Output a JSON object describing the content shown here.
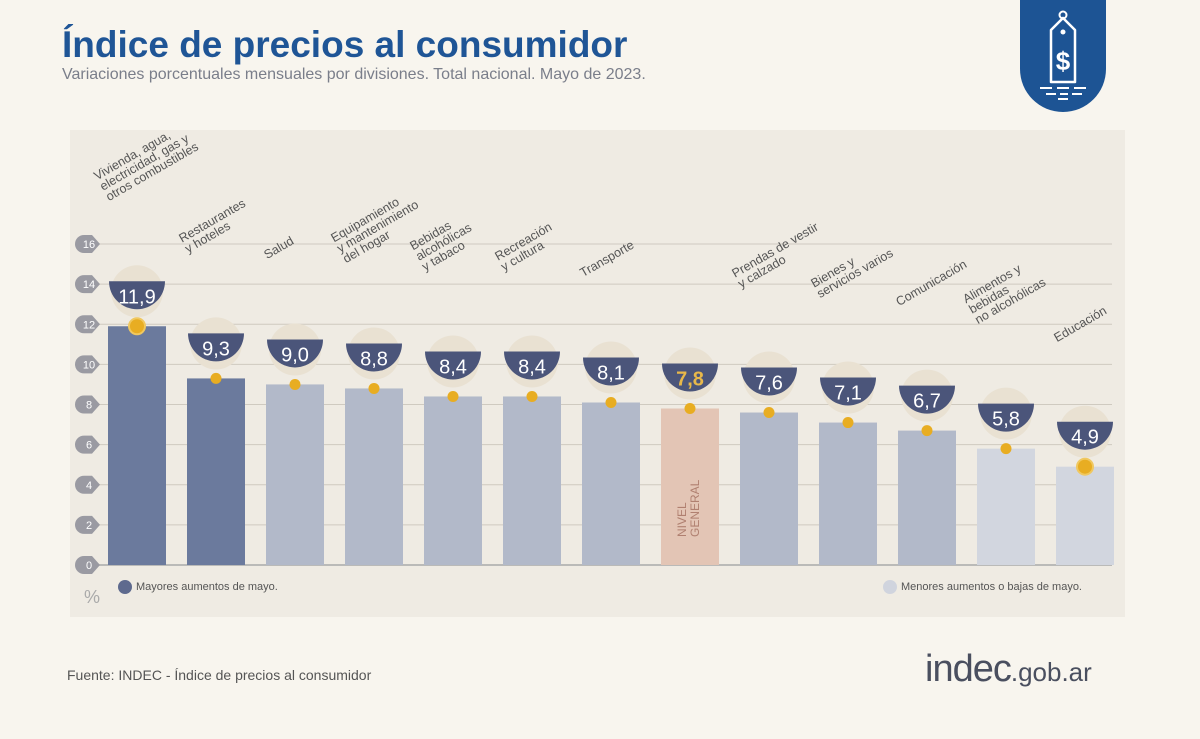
{
  "header": {
    "title": "Índice de precios al consumidor",
    "subtitle": "Variaciones porcentuales mensuales por divisiones. Total nacional. Mayo de 2023."
  },
  "logo": {
    "icon": "price-tag-dollar-icon",
    "color": "#1d5494"
  },
  "chart_data": {
    "type": "bar",
    "categories": [
      "Vivienda, agua,\nelectricidad, gas y\notros combustibles",
      "Restaurantes\ny hoteles",
      "Salud",
      "Equipamiento\ny mantenimiento\ndel hogar",
      "Bebidas\nalcohólicas\ny tabaco",
      "Recreación\ny cultura",
      "Transporte",
      "NIVEL\nGENERAL",
      "Prendas de vestir\ny calzado",
      "Bienes y\nservicios varios",
      "Comunicación",
      "Alimentos y\nbebidas\nno alcohólicas",
      "Educación"
    ],
    "values": [
      11.9,
      9.3,
      9.0,
      8.8,
      8.4,
      8.4,
      8.1,
      7.8,
      7.6,
      7.1,
      6.7,
      5.8,
      4.9
    ],
    "value_labels": [
      "11,9",
      "9,3",
      "9,0",
      "8,8",
      "8,4",
      "8,4",
      "8,1",
      "7,8",
      "7,6",
      "7,1",
      "6,7",
      "5,8",
      "4,9"
    ],
    "groups": [
      "mayores",
      "mayores",
      "medio",
      "medio",
      "medio",
      "medio",
      "medio",
      "general",
      "medio",
      "medio",
      "medio",
      "menores",
      "menores"
    ],
    "ylim": [
      0,
      16
    ],
    "yticks": [
      0,
      2,
      4,
      6,
      8,
      10,
      12,
      14,
      16
    ],
    "ylabel": "%",
    "grid": true,
    "colors": {
      "mayores": "#6b7a9d",
      "medio": "#b2b9c9",
      "menores": "#d2d6df",
      "general": "#e3c5b5",
      "badge": "#4b557a",
      "dot": "#e8ad22",
      "general_text": "#e8b84a"
    },
    "legend": [
      {
        "label": "Mayores aumentos de mayo.",
        "color": "#5e6a8e",
        "position": "bottom-left"
      },
      {
        "label": "Menores aumentos o bajas de mayo.",
        "color": "#d0d4de",
        "position": "bottom-right"
      }
    ]
  },
  "footer": {
    "source": "Fuente: INDEC - Índice de precios al consumidor",
    "brand_main": "indec",
    "brand_domain": ".gob.ar"
  }
}
